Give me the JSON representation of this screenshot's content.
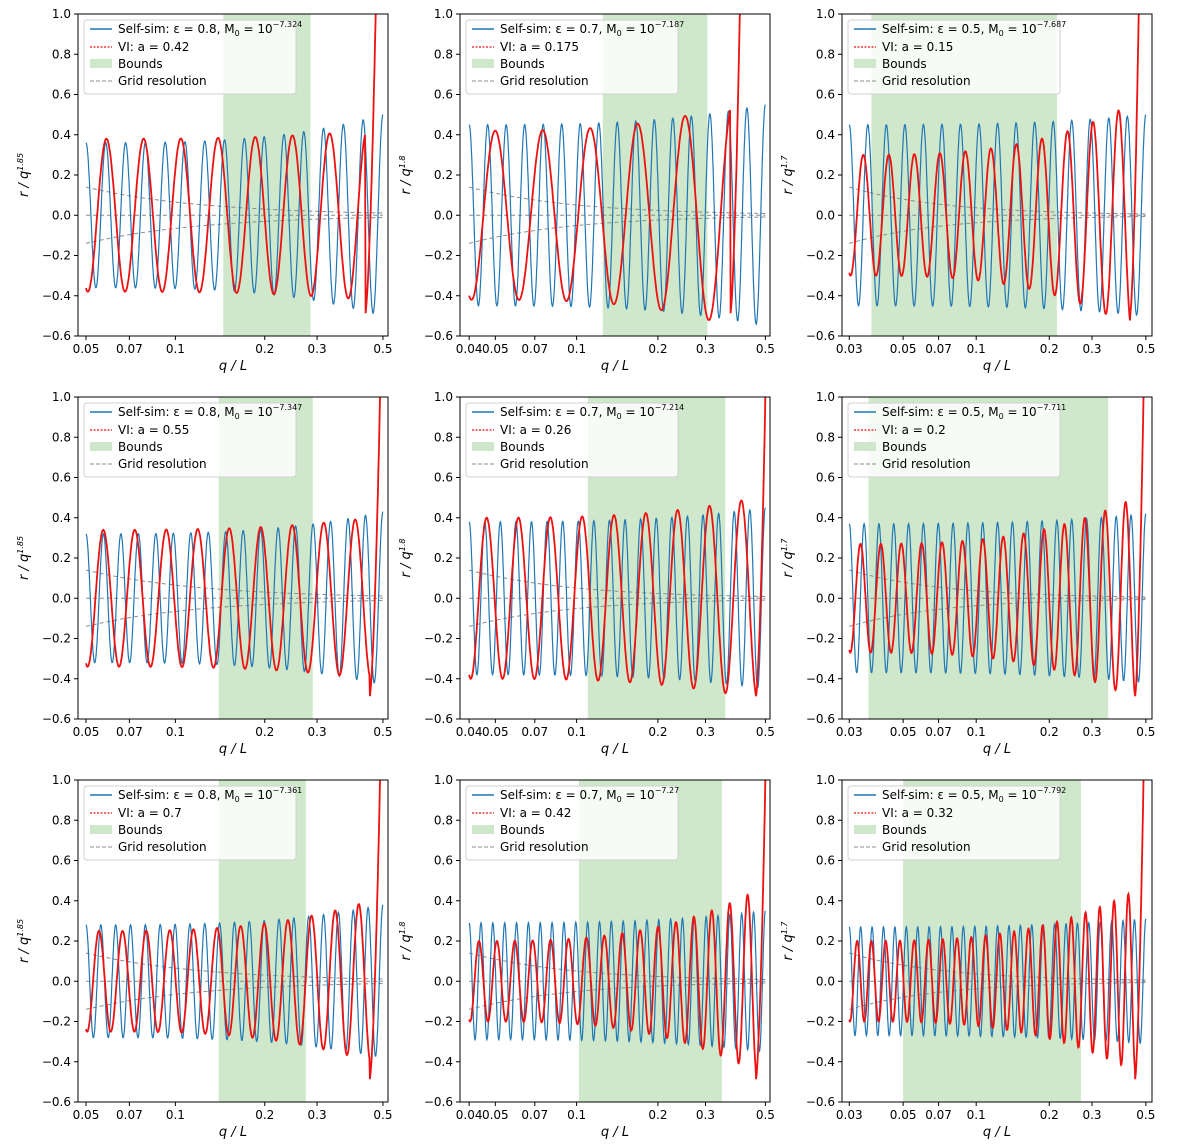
{
  "figure": {
    "description_label": "3x3 grid of oscillation plots"
  },
  "colors": {
    "selfsim": "#1f77b4",
    "vi": "#ee1111",
    "bounds": "#cfe8cb",
    "grid": "#8c8c8c"
  },
  "chart_data": [
    {
      "type": "line",
      "xlabel": "q / L",
      "ylabel": "r / q^1.85",
      "ylabel_base": "r / q",
      "ylabel_exp": "1.85",
      "xlim": [
        0.047,
        0.52
      ],
      "ylim": [
        -0.6,
        1.0
      ],
      "xscale": "log",
      "xticks": [
        0.05,
        0.07,
        0.1,
        0.2,
        0.3,
        0.5
      ],
      "xtick_labels": [
        "0.05",
        "0.07",
        "0.1",
        "0.2",
        "0.3",
        "0.5"
      ],
      "yticks": [
        -0.6,
        -0.4,
        -0.2,
        0.0,
        0.2,
        0.4,
        0.6,
        0.8,
        1.0
      ],
      "ytick_labels": [
        "−0.6",
        "−0.4",
        "−0.2",
        "0.0",
        "0.2",
        "0.4",
        "0.6",
        "0.8",
        "1.0"
      ],
      "bounds": [
        0.145,
        0.285
      ],
      "series_selfsim": {
        "name": "Self-sim",
        "label_prefix": "Self-sim: ε = 0.8, M",
        "label_sub": "0",
        "label_eq": " = 10",
        "label_exp": "−7.324",
        "x_start": 0.05,
        "x_end": 0.5,
        "amplitude_start": 0.36,
        "amplitude_end": 0.5,
        "cycles": 15
      },
      "series_vi": {
        "name": "VI",
        "label": "VI: a = 0.42",
        "x_start": 0.05,
        "x_end": 0.435,
        "amplitude_start": 0.38,
        "amplitude_end": 0.42,
        "cycles": 7.5
      },
      "legend": {
        "bounds": "Bounds",
        "grid": "Grid resolution"
      },
      "legend_position": "top-left"
    },
    {
      "type": "line",
      "xlabel": "q / L",
      "ylabel": "r / q^1.8",
      "ylabel_base": "r / q",
      "ylabel_exp": "1.8",
      "xlim": [
        0.037,
        0.52
      ],
      "ylim": [
        -0.6,
        1.0
      ],
      "xscale": "log",
      "xticks": [
        0.04,
        0.05,
        0.07,
        0.1,
        0.2,
        0.3,
        0.5
      ],
      "xtick_labels": [
        "0.04",
        "0.05",
        "0.07",
        "0.1",
        "0.2",
        "0.3",
        "0.5"
      ],
      "yticks": [
        -0.6,
        -0.4,
        -0.2,
        0.0,
        0.2,
        0.4,
        0.6,
        0.8,
        1.0
      ],
      "ytick_labels": [
        "−0.6",
        "−0.4",
        "−0.2",
        "0.0",
        "0.2",
        "0.4",
        "0.6",
        "0.8",
        "1.0"
      ],
      "bounds": [
        0.125,
        0.305
      ],
      "series_selfsim": {
        "name": "Self-sim",
        "label_prefix": "Self-sim: ε = 0.7, M",
        "label_sub": "0",
        "label_eq": " = 10",
        "label_exp": "−7.187",
        "x_start": 0.04,
        "x_end": 0.5,
        "amplitude_start": 0.45,
        "amplitude_end": 0.55,
        "cycles": 16
      },
      "series_vi": {
        "name": "VI",
        "label": "VI: a = 0.175",
        "x_start": 0.04,
        "x_end": 0.37,
        "amplitude_start": 0.42,
        "amplitude_end": 0.55,
        "cycles": 5.5
      },
      "legend": {
        "bounds": "Bounds",
        "grid": "Grid resolution"
      },
      "legend_position": "top-left"
    },
    {
      "type": "line",
      "xlabel": "q / L",
      "ylabel": "r / q^1.7",
      "ylabel_base": "r / q",
      "ylabel_exp": "1.7",
      "xlim": [
        0.028,
        0.53
      ],
      "ylim": [
        -0.6,
        1.0
      ],
      "xscale": "log",
      "xticks": [
        0.03,
        0.05,
        0.07,
        0.1,
        0.2,
        0.3,
        0.5
      ],
      "xtick_labels": [
        "0.03",
        "0.05",
        "0.07",
        "0.1",
        "0.2",
        "0.3",
        "0.5"
      ],
      "yticks": [
        -0.6,
        -0.4,
        -0.2,
        0.0,
        0.2,
        0.4,
        0.6,
        0.8,
        1.0
      ],
      "ytick_labels": [
        "−0.6",
        "−0.4",
        "−0.2",
        "0.0",
        "0.2",
        "0.4",
        "0.6",
        "0.8",
        "1.0"
      ],
      "bounds": [
        0.037,
        0.215
      ],
      "series_selfsim": {
        "name": "Self-sim",
        "label_prefix": "Self-sim: ε = 0.5, M",
        "label_sub": "0",
        "label_eq": " = 10",
        "label_exp": "−7.687",
        "x_start": 0.03,
        "x_end": 0.5,
        "amplitude_start": 0.45,
        "amplitude_end": 0.5,
        "cycles": 16
      },
      "series_vi": {
        "name": "VI",
        "label": "VI: a = 0.15",
        "x_start": 0.03,
        "x_end": 0.43,
        "amplitude_start": 0.3,
        "amplitude_end": 0.55,
        "cycles": 11
      },
      "legend": {
        "bounds": "Bounds",
        "grid": "Grid resolution"
      },
      "legend_position": "top-left"
    },
    {
      "type": "line",
      "xlabel": "q / L",
      "ylabel": "r / q^1.85",
      "ylabel_base": "r / q",
      "ylabel_exp": "1.85",
      "xlim": [
        0.047,
        0.52
      ],
      "ylim": [
        -0.6,
        1.0
      ],
      "xscale": "log",
      "xticks": [
        0.05,
        0.07,
        0.1,
        0.2,
        0.3,
        0.5
      ],
      "xtick_labels": [
        "0.05",
        "0.07",
        "0.1",
        "0.2",
        "0.3",
        "0.5"
      ],
      "yticks": [
        -0.6,
        -0.4,
        -0.2,
        0.0,
        0.2,
        0.4,
        0.6,
        0.8,
        1.0
      ],
      "ytick_labels": [
        "−0.6",
        "−0.4",
        "−0.2",
        "0.0",
        "0.2",
        "0.4",
        "0.6",
        "0.8",
        "1.0"
      ],
      "bounds": [
        0.14,
        0.29
      ],
      "series_selfsim": {
        "name": "Self-sim",
        "label_prefix": "Self-sim: ε = 0.8, M",
        "label_sub": "0",
        "label_eq": " = 10",
        "label_exp": "−7.347",
        "x_start": 0.05,
        "x_end": 0.5,
        "amplitude_start": 0.32,
        "amplitude_end": 0.43,
        "cycles": 17
      },
      "series_vi": {
        "name": "VI",
        "label": "VI: a = 0.55",
        "x_start": 0.05,
        "x_end": 0.45,
        "amplitude_start": 0.34,
        "amplitude_end": 0.4,
        "cycles": 9
      },
      "legend": {
        "bounds": "Bounds",
        "grid": "Grid resolution"
      },
      "legend_position": "top-left"
    },
    {
      "type": "line",
      "xlabel": "q / L",
      "ylabel": "r / q^1.8",
      "ylabel_base": "r / q",
      "ylabel_exp": "1.8",
      "xlim": [
        0.037,
        0.52
      ],
      "ylim": [
        -0.6,
        1.0
      ],
      "xscale": "log",
      "xticks": [
        0.04,
        0.05,
        0.07,
        0.1,
        0.2,
        0.3,
        0.5
      ],
      "xtick_labels": [
        "0.04",
        "0.05",
        "0.07",
        "0.1",
        "0.2",
        "0.3",
        "0.5"
      ],
      "yticks": [
        -0.6,
        -0.4,
        -0.2,
        0.0,
        0.2,
        0.4,
        0.6,
        0.8,
        1.0
      ],
      "ytick_labels": [
        "−0.6",
        "−0.4",
        "−0.2",
        "0.0",
        "0.2",
        "0.4",
        "0.6",
        "0.8",
        "1.0"
      ],
      "bounds": [
        0.11,
        0.355
      ],
      "series_selfsim": {
        "name": "Self-sim",
        "label_prefix": "Self-sim: ε = 0.7, M",
        "label_sub": "0",
        "label_eq": " = 10",
        "label_exp": "−7.214",
        "x_start": 0.04,
        "x_end": 0.5,
        "amplitude_start": 0.38,
        "amplitude_end": 0.45,
        "cycles": 19
      },
      "series_vi": {
        "name": "VI",
        "label": "VI: a = 0.26",
        "x_start": 0.04,
        "x_end": 0.46,
        "amplitude_start": 0.4,
        "amplitude_end": 0.5,
        "cycles": 9
      },
      "legend": {
        "bounds": "Bounds",
        "grid": "Grid resolution"
      },
      "legend_position": "top-left"
    },
    {
      "type": "line",
      "xlabel": "q / L",
      "ylabel": "r / q^1.7",
      "ylabel_base": "r / q",
      "ylabel_exp": "1.7",
      "xlim": [
        0.028,
        0.53
      ],
      "ylim": [
        -0.6,
        1.0
      ],
      "xscale": "log",
      "xticks": [
        0.03,
        0.05,
        0.07,
        0.1,
        0.2,
        0.3,
        0.5
      ],
      "xtick_labels": [
        "0.03",
        "0.05",
        "0.07",
        "0.1",
        "0.2",
        "0.3",
        "0.5"
      ],
      "yticks": [
        -0.6,
        -0.4,
        -0.2,
        0.0,
        0.2,
        0.4,
        0.6,
        0.8,
        1.0
      ],
      "ytick_labels": [
        "−0.6",
        "−0.4",
        "−0.2",
        "0.0",
        "0.2",
        "0.4",
        "0.6",
        "0.8",
        "1.0"
      ],
      "bounds": [
        0.036,
        0.35
      ],
      "series_selfsim": {
        "name": "Self-sim",
        "label_prefix": "Self-sim: ε = 0.5, M",
        "label_sub": "0",
        "label_eq": " = 10",
        "label_exp": "−7.711",
        "x_start": 0.03,
        "x_end": 0.5,
        "amplitude_start": 0.37,
        "amplitude_end": 0.42,
        "cycles": 20
      },
      "series_vi": {
        "name": "VI",
        "label": "VI: a = 0.2",
        "x_start": 0.03,
        "x_end": 0.45,
        "amplitude_start": 0.27,
        "amplitude_end": 0.5,
        "cycles": 14
      },
      "legend": {
        "bounds": "Bounds",
        "grid": "Grid resolution"
      },
      "legend_position": "top-left"
    },
    {
      "type": "line",
      "xlabel": "q / L",
      "ylabel": "r / q^1.85",
      "ylabel_base": "r / q",
      "ylabel_exp": "1.85",
      "xlim": [
        0.047,
        0.52
      ],
      "ylim": [
        -0.6,
        1.0
      ],
      "xscale": "log",
      "xticks": [
        0.05,
        0.07,
        0.1,
        0.2,
        0.3,
        0.5
      ],
      "xtick_labels": [
        "0.05",
        "0.07",
        "0.1",
        "0.2",
        "0.3",
        "0.5"
      ],
      "yticks": [
        -0.6,
        -0.4,
        -0.2,
        0.0,
        0.2,
        0.4,
        0.6,
        0.8,
        1.0
      ],
      "ytick_labels": [
        "−0.6",
        "−0.4",
        "−0.2",
        "0.0",
        "0.2",
        "0.4",
        "0.6",
        "0.8",
        "1.0"
      ],
      "bounds": [
        0.14,
        0.275
      ],
      "series_selfsim": {
        "name": "Self-sim",
        "label_prefix": "Self-sim: ε = 0.8, M",
        "label_sub": "0",
        "label_eq": " = 10",
        "label_exp": "−7.361",
        "x_start": 0.05,
        "x_end": 0.5,
        "amplitude_start": 0.28,
        "amplitude_end": 0.38,
        "cycles": 20
      },
      "series_vi": {
        "name": "VI",
        "label": "VI: a = 0.7",
        "x_start": 0.05,
        "x_end": 0.45,
        "amplitude_start": 0.25,
        "amplitude_end": 0.4,
        "cycles": 12
      },
      "legend": {
        "bounds": "Bounds",
        "grid": "Grid resolution"
      },
      "legend_position": "top-left"
    },
    {
      "type": "line",
      "xlabel": "q / L",
      "ylabel": "r / q^1.8",
      "ylabel_base": "r / q",
      "ylabel_exp": "1.8",
      "xlim": [
        0.037,
        0.52
      ],
      "ylim": [
        -0.6,
        1.0
      ],
      "xscale": "log",
      "xticks": [
        0.04,
        0.05,
        0.07,
        0.1,
        0.2,
        0.3,
        0.5
      ],
      "xtick_labels": [
        "0.04",
        "0.05",
        "0.07",
        "0.1",
        "0.2",
        "0.3",
        "0.5"
      ],
      "yticks": [
        -0.6,
        -0.4,
        -0.2,
        0.0,
        0.2,
        0.4,
        0.6,
        0.8,
        1.0
      ],
      "ytick_labels": [
        "−0.6",
        "−0.4",
        "−0.2",
        "0.0",
        "0.2",
        "0.4",
        "0.6",
        "0.8",
        "1.0"
      ],
      "bounds": [
        0.102,
        0.345
      ],
      "series_selfsim": {
        "name": "Self-sim",
        "label_prefix": "Self-sim: ε = 0.7, M",
        "label_sub": "0",
        "label_eq": " = 10",
        "label_exp": "−7.27",
        "x_start": 0.04,
        "x_end": 0.5,
        "amplitude_start": 0.29,
        "amplitude_end": 0.35,
        "cycles": 25
      },
      "series_vi": {
        "name": "VI",
        "label": "VI: a = 0.42",
        "x_start": 0.04,
        "x_end": 0.46,
        "amplitude_start": 0.2,
        "amplitude_end": 0.45,
        "cycles": 16
      },
      "legend": {
        "bounds": "Bounds",
        "grid": "Grid resolution"
      },
      "legend_position": "top-left"
    },
    {
      "type": "line",
      "xlabel": "q / L",
      "ylabel": "r / q^1.7",
      "ylabel_base": "r / q",
      "ylabel_exp": "1.7",
      "xlim": [
        0.028,
        0.53
      ],
      "ylim": [
        -0.6,
        1.0
      ],
      "xscale": "log",
      "xticks": [
        0.03,
        0.05,
        0.07,
        0.1,
        0.2,
        0.3,
        0.5
      ],
      "xtick_labels": [
        "0.03",
        "0.05",
        "0.07",
        "0.1",
        "0.2",
        "0.3",
        "0.5"
      ],
      "yticks": [
        -0.6,
        -0.4,
        -0.2,
        0.0,
        0.2,
        0.4,
        0.6,
        0.8,
        1.0
      ],
      "ytick_labels": [
        "−0.6",
        "−0.4",
        "−0.2",
        "0.0",
        "0.2",
        "0.4",
        "0.6",
        "0.8",
        "1.0"
      ],
      "bounds": [
        0.05,
        0.27
      ],
      "series_selfsim": {
        "name": "Self-sim",
        "label_prefix": "Self-sim: ε = 0.5, M",
        "label_sub": "0",
        "label_eq": " = 10",
        "label_exp": "−7.792",
        "x_start": 0.03,
        "x_end": 0.5,
        "amplitude_start": 0.27,
        "amplitude_end": 0.31,
        "cycles": 26
      },
      "series_vi": {
        "name": "VI",
        "label": "VI: a = 0.32",
        "x_start": 0.03,
        "x_end": 0.45,
        "amplitude_start": 0.2,
        "amplitude_end": 0.45,
        "cycles": 20
      },
      "legend": {
        "bounds": "Bounds",
        "grid": "Grid resolution"
      },
      "legend_position": "top-left"
    }
  ]
}
